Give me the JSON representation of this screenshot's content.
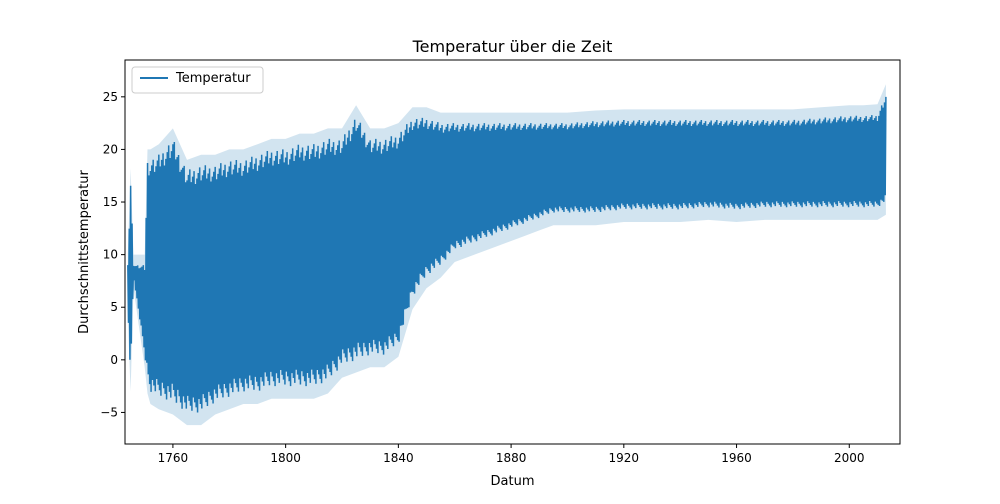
{
  "chart_data": {
    "type": "line",
    "title": "Temperatur über die Zeit",
    "xlabel": "Datum",
    "ylabel": "Durchschnittstemperatur",
    "xlim": [
      1743,
      2018
    ],
    "ylim": [
      -8,
      28.5
    ],
    "xticks": [
      1760,
      1800,
      1840,
      1880,
      1920,
      1960,
      2000
    ],
    "yticks": [
      -5,
      0,
      5,
      10,
      15,
      20,
      25
    ],
    "ytick_labels": [
      "−5",
      "0",
      "5",
      "10",
      "15",
      "20",
      "25"
    ],
    "legend": {
      "position": "top-left",
      "entries": [
        "Temperatur"
      ]
    },
    "grid": false,
    "colors": {
      "line": "#1f77b4",
      "band": "#1f77b4"
    },
    "series": [
      {
        "name": "Temperatur",
        "sampled_envelope": {
          "x": [
            1744,
            1745,
            1746,
            1750,
            1751,
            1752,
            1755,
            1760,
            1765,
            1770,
            1775,
            1780,
            1785,
            1790,
            1795,
            1800,
            1805,
            1810,
            1815,
            1820,
            1825,
            1830,
            1835,
            1840,
            1845,
            1850,
            1855,
            1860,
            1865,
            1870,
            1875,
            1880,
            1885,
            1890,
            1895,
            1900,
            1910,
            1920,
            1930,
            1940,
            1950,
            1960,
            1970,
            1980,
            1990,
            2000,
            2005,
            2010,
            2013
          ],
          "low": [
            5,
            -1.8,
            8,
            0.5,
            -2,
            -3,
            -3.5,
            -4,
            -5,
            -5,
            -4,
            -3.5,
            -3,
            -3,
            -2.5,
            -2.5,
            -2.5,
            -2.5,
            -2,
            -0.5,
            0,
            0.5,
            0.5,
            1.5,
            6,
            8,
            9,
            10.5,
            11,
            11.5,
            12,
            12.5,
            13,
            13.5,
            14,
            14,
            14,
            14.3,
            14.3,
            14.3,
            14.5,
            14.3,
            14.5,
            14.5,
            14.5,
            14.5,
            14.5,
            14.5,
            15
          ],
          "high": [
            9,
            17.2,
            9,
            9,
            19,
            19,
            19.5,
            21,
            18,
            18.5,
            18.5,
            19,
            19,
            19.5,
            20,
            20,
            20.5,
            20.5,
            21,
            21,
            23.2,
            21,
            21,
            21.5,
            23,
            23,
            22.5,
            22.5,
            22.5,
            22.5,
            22.5,
            22.5,
            22.5,
            22.5,
            22.5,
            22.5,
            22.7,
            22.8,
            22.8,
            22.8,
            22.8,
            22.8,
            22.8,
            22.8,
            23,
            23.2,
            23.2,
            23.3,
            25.2
          ]
        }
      }
    ]
  }
}
